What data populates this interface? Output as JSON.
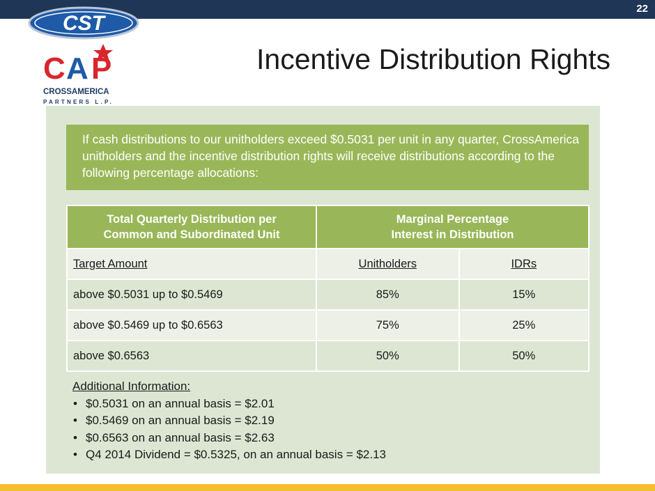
{
  "slide": {
    "page_number": "22",
    "title": "Incentive Distribution Rights"
  },
  "logo": {
    "top_text": "CST",
    "mid_text": "CAP",
    "line1": "CROSSAMERICA",
    "line2": "PARTNERS L.P."
  },
  "colors": {
    "top_bar": "#1f3656",
    "accent_green": "#99b758",
    "panel": "#dde6d3",
    "bottom_bar": "#f6bd2e"
  },
  "intro": "If cash distributions to our unitholders exceed $0.5031 per unit in any quarter, CrossAmerica unitholders and the incentive distribution rights  will receive distributions according to the following percentage allocations:",
  "table": {
    "header_left_line1": "Total Quarterly Distribution per",
    "header_left_line2": "Common and Subordinated Unit",
    "header_right_line1": "Marginal Percentage",
    "header_right_line2": "Interest in Distribution",
    "col_target": "Target Amount",
    "col_unitholders": "Unitholders",
    "col_idrs": "IDRs",
    "rows": [
      {
        "target": "above $0.5031 up to $0.5469",
        "unitholders": "85%",
        "idrs": "15%"
      },
      {
        "target": "above $0.5469 up to $0.6563",
        "unitholders": "75%",
        "idrs": "25%"
      },
      {
        "target": "above $0.6563",
        "unitholders": "50%",
        "idrs": "50%"
      }
    ]
  },
  "additional": {
    "title": "Additional Information:",
    "items": [
      "$0.5031 on an annual basis = $2.01",
      "$0.5469 on an annual basis = $2.19",
      "$0.6563 on an annual basis = $2.63",
      "Q4 2014 Dividend = $0.5325, on an annual basis = $2.13"
    ]
  }
}
